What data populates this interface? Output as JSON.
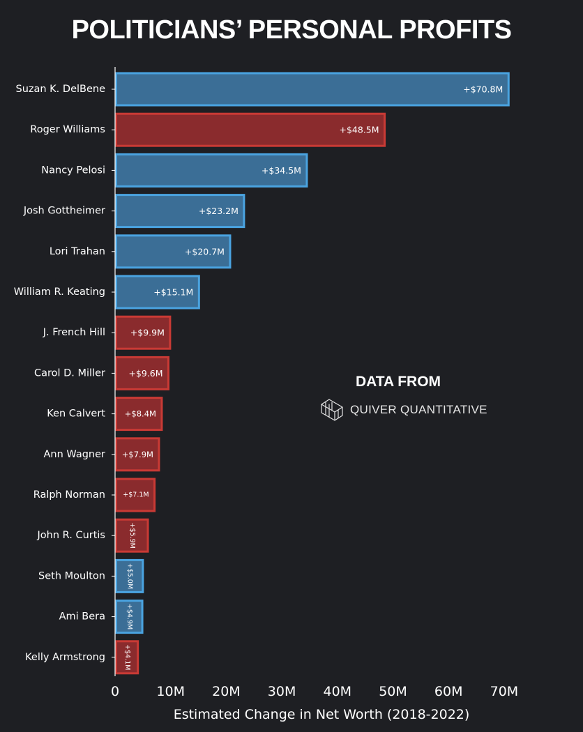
{
  "chart_data": {
    "type": "bar",
    "orientation": "horizontal",
    "title": "POLITICIANS’ PERSONAL PROFITS",
    "xlabel": "Estimated Change in Net Worth (2018-2022)",
    "ylabel": "",
    "xlim": [
      0,
      72
    ],
    "xticks": [
      {
        "value": 0,
        "label": "0"
      },
      {
        "value": 10,
        "label": "10M"
      },
      {
        "value": 20,
        "label": "20M"
      },
      {
        "value": 30,
        "label": "30M"
      },
      {
        "value": 40,
        "label": "40M"
      },
      {
        "value": 50,
        "label": "50M"
      },
      {
        "value": 60,
        "label": "60M"
      },
      {
        "value": 70,
        "label": "70M"
      }
    ],
    "grid": false,
    "value_unit": "millions USD",
    "bars": [
      {
        "name": "Suzan K. DelBene",
        "value": 70.8,
        "label": "+$70.8M",
        "party": "D"
      },
      {
        "name": "Roger Williams",
        "value": 48.5,
        "label": "+$48.5M",
        "party": "R"
      },
      {
        "name": "Nancy Pelosi",
        "value": 34.5,
        "label": "+$34.5M",
        "party": "D"
      },
      {
        "name": "Josh Gottheimer",
        "value": 23.2,
        "label": "+$23.2M",
        "party": "D"
      },
      {
        "name": "Lori Trahan",
        "value": 20.7,
        "label": "+$20.7M",
        "party": "D"
      },
      {
        "name": "William R. Keating",
        "value": 15.1,
        "label": "+$15.1M",
        "party": "D"
      },
      {
        "name": "J. French Hill",
        "value": 9.9,
        "label": "+$9.9M",
        "party": "R"
      },
      {
        "name": "Carol D. Miller",
        "value": 9.6,
        "label": "+$9.6M",
        "party": "R"
      },
      {
        "name": "Ken Calvert",
        "value": 8.4,
        "label": "+$8.4M",
        "party": "R"
      },
      {
        "name": "Ann Wagner",
        "value": 7.9,
        "label": "+$7.9M",
        "party": "R"
      },
      {
        "name": "Ralph Norman",
        "value": 7.1,
        "label": "+$7.1M",
        "party": "R"
      },
      {
        "name": "John R. Curtis",
        "value": 5.9,
        "label": "+$5.9M",
        "party": "R"
      },
      {
        "name": "Seth Moulton",
        "value": 5.0,
        "label": "+$5.0M",
        "party": "D"
      },
      {
        "name": "Ami Bera",
        "value": 4.9,
        "label": "+$4.9M",
        "party": "D"
      },
      {
        "name": "Kelly Armstrong",
        "value": 4.1,
        "label": "+$4.1M",
        "party": "R"
      }
    ],
    "colors": {
      "D": {
        "fill": "#3b6e96",
        "stroke": "#4aa3e0"
      },
      "R": {
        "fill": "#8a2b2d",
        "stroke": "#c93a35"
      },
      "axis": "#ffffff",
      "background": "#1e1f23"
    }
  },
  "watermark": {
    "heading": "DATA FROM",
    "brand": "QUIVER QUANTITATIVE",
    "logo_icon": "quiver-cube-logo-icon"
  }
}
